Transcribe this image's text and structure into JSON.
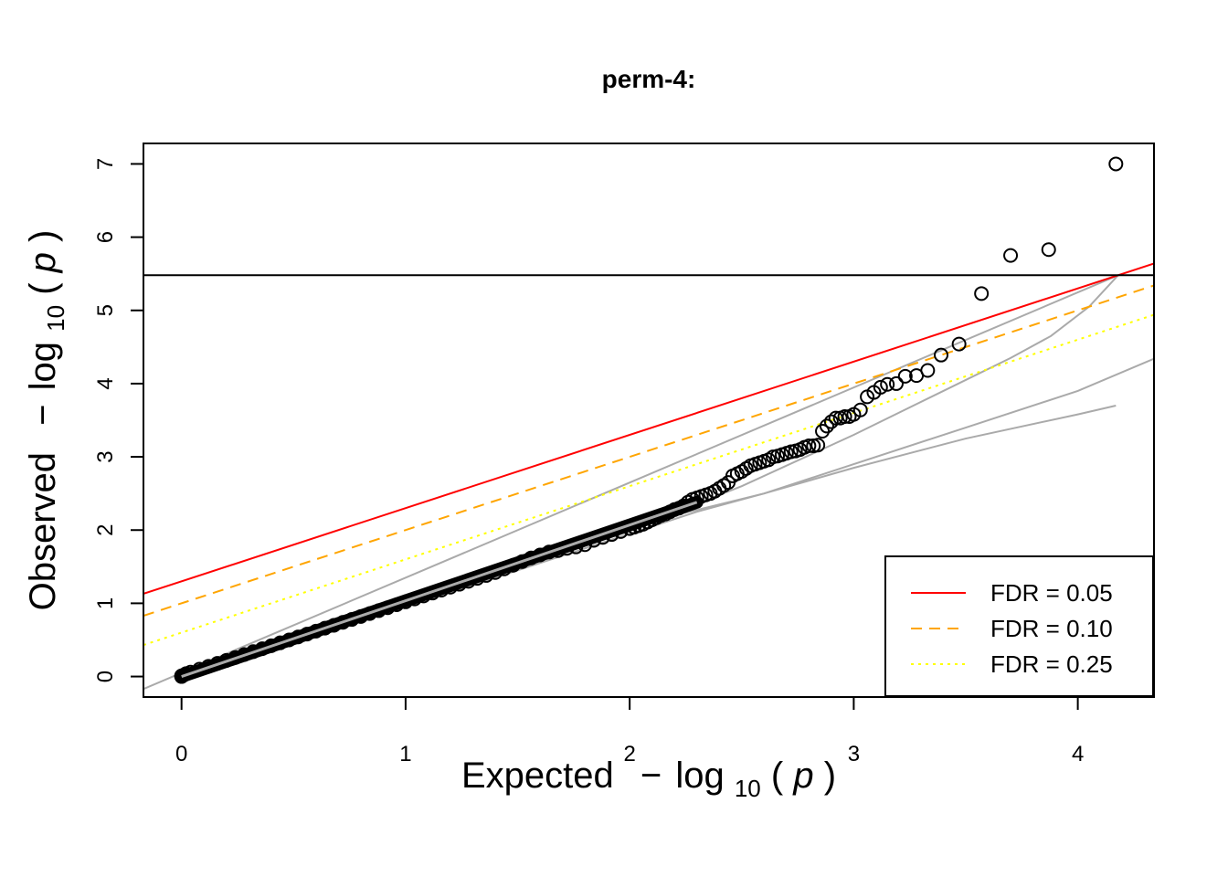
{
  "chart_data": {
    "type": "scatter",
    "title": "perm-4:",
    "xlabel": {
      "prefix": "Expected",
      "minus": "−",
      "log": "log",
      "sub": "10",
      "open": "(",
      "var": "p",
      "close": ")"
    },
    "ylabel": {
      "prefix": "Observed",
      "minus": "−",
      "log": "log",
      "sub": "10",
      "open": "(",
      "var": "p",
      "close": ")"
    },
    "xlim": [
      -0.17,
      4.34
    ],
    "ylim": [
      -0.28,
      7.28
    ],
    "x_ticks": [
      0,
      1,
      2,
      3,
      4
    ],
    "x_tick_labels": [
      "0",
      "1",
      "2",
      "3",
      "4"
    ],
    "y_ticks": [
      0,
      1,
      2,
      3,
      4,
      5,
      6,
      7
    ],
    "y_tick_labels": [
      "0",
      "1",
      "2",
      "3",
      "4",
      "5",
      "6",
      "7"
    ],
    "grid": false,
    "legend_position": "bottom-right",
    "legend": [
      {
        "label": "FDR = 0.05",
        "color": "#ff0000",
        "style": "solid"
      },
      {
        "label": "FDR = 0.10",
        "color": "#ffa500",
        "style": "dashed"
      },
      {
        "label": "FDR = 0.25",
        "color": "#ffff00",
        "style": "dotted"
      }
    ],
    "significance_threshold": {
      "y": 5.48,
      "color": "#000000"
    },
    "fdr_lines": [
      {
        "name": "FDR = 0.05",
        "intercept": 1.3,
        "slope": 1.0,
        "color": "#ff0000",
        "style": "solid"
      },
      {
        "name": "FDR = 0.10",
        "intercept": 1.0,
        "slope": 1.0,
        "color": "#ffa500",
        "style": "dashed"
      },
      {
        "name": "FDR = 0.25",
        "intercept": 0.6,
        "slope": 1.0,
        "color": "#ffff00",
        "style": "dotted"
      }
    ],
    "reference_lines": [
      {
        "name": "identity",
        "color": "#aaaaaa",
        "points": [
          [
            -0.17,
            -0.17
          ],
          [
            4.18,
            5.48
          ]
        ]
      },
      {
        "name": "ci-upper",
        "color": "#aaaaaa",
        "points": [
          [
            0,
            0
          ],
          [
            1,
            1.0
          ],
          [
            2,
            2.0
          ],
          [
            2.5,
            2.6
          ],
          [
            3.0,
            3.3
          ],
          [
            3.4,
            3.9
          ],
          [
            3.7,
            4.35
          ],
          [
            3.88,
            4.65
          ],
          [
            4.05,
            5.05
          ],
          [
            4.18,
            5.48
          ]
        ]
      },
      {
        "name": "ci-lower",
        "color": "#aaaaaa",
        "points": [
          [
            0,
            0
          ],
          [
            1,
            0.95
          ],
          [
            2,
            1.95
          ],
          [
            2.3,
            2.25
          ],
          [
            2.6,
            2.5
          ],
          [
            3.0,
            2.9
          ],
          [
            3.5,
            3.4
          ],
          [
            4.0,
            3.9
          ],
          [
            4.34,
            4.34
          ]
        ]
      },
      {
        "name": "ci-lower-2",
        "color": "#aaaaaa",
        "points": [
          [
            2.2,
            2.2
          ],
          [
            2.6,
            2.5
          ],
          [
            3.0,
            2.85
          ],
          [
            3.5,
            3.25
          ],
          [
            4.0,
            3.58
          ],
          [
            4.17,
            3.7
          ]
        ]
      }
    ],
    "points": [
      [
        4.17,
        7.0
      ],
      [
        3.87,
        5.83
      ],
      [
        3.7,
        5.75
      ],
      [
        3.57,
        5.23
      ],
      [
        3.47,
        4.54
      ],
      [
        3.39,
        4.39
      ],
      [
        3.33,
        4.18
      ],
      [
        3.28,
        4.11
      ],
      [
        3.23,
        4.1
      ],
      [
        3.19,
        4.0
      ],
      [
        3.15,
        3.99
      ],
      [
        3.12,
        3.95
      ],
      [
        3.09,
        3.88
      ],
      [
        3.06,
        3.82
      ],
      [
        3.03,
        3.64
      ],
      [
        3.0,
        3.58
      ],
      [
        2.98,
        3.55
      ],
      [
        2.96,
        3.55
      ],
      [
        2.94,
        3.53
      ],
      [
        2.92,
        3.53
      ],
      [
        2.9,
        3.48
      ],
      [
        2.88,
        3.42
      ],
      [
        2.86,
        3.35
      ],
      [
        2.84,
        3.16
      ],
      [
        2.82,
        3.15
      ],
      [
        2.8,
        3.15
      ],
      [
        2.78,
        3.13
      ],
      [
        2.76,
        3.1
      ],
      [
        2.74,
        3.08
      ],
      [
        2.72,
        3.07
      ],
      [
        2.7,
        3.05
      ],
      [
        2.68,
        3.03
      ],
      [
        2.66,
        3.01
      ],
      [
        2.64,
        3.0
      ],
      [
        2.62,
        2.96
      ],
      [
        2.6,
        2.94
      ],
      [
        2.58,
        2.92
      ],
      [
        2.56,
        2.9
      ],
      [
        2.54,
        2.88
      ],
      [
        2.52,
        2.84
      ],
      [
        2.5,
        2.8
      ],
      [
        2.48,
        2.77
      ],
      [
        2.46,
        2.74
      ],
      [
        2.44,
        2.65
      ],
      [
        2.42,
        2.61
      ],
      [
        2.4,
        2.57
      ],
      [
        2.38,
        2.53
      ],
      [
        2.36,
        2.5
      ],
      [
        2.34,
        2.48
      ],
      [
        2.32,
        2.46
      ],
      [
        2.3,
        2.44
      ],
      [
        2.28,
        2.42
      ],
      [
        2.26,
        2.38
      ],
      [
        2.24,
        2.33
      ],
      [
        2.22,
        2.3
      ],
      [
        2.2,
        2.28
      ],
      [
        2.18,
        2.25
      ],
      [
        2.16,
        2.22
      ],
      [
        2.14,
        2.2
      ],
      [
        2.12,
        2.17
      ],
      [
        2.1,
        2.14
      ],
      [
        2.08,
        2.11
      ],
      [
        2.06,
        2.08
      ],
      [
        2.04,
        2.06
      ],
      [
        2.02,
        2.04
      ],
      [
        2.0,
        2.02
      ],
      [
        1.96,
        1.98
      ],
      [
        1.92,
        1.94
      ],
      [
        1.88,
        1.9
      ],
      [
        1.84,
        1.86
      ],
      [
        1.8,
        1.8
      ],
      [
        1.76,
        1.77
      ],
      [
        1.72,
        1.75
      ],
      [
        1.68,
        1.72
      ],
      [
        1.64,
        1.7
      ],
      [
        1.6,
        1.66
      ],
      [
        1.56,
        1.62
      ],
      [
        1.52,
        1.57
      ],
      [
        1.48,
        1.52
      ],
      [
        1.44,
        1.47
      ],
      [
        1.4,
        1.42
      ],
      [
        1.36,
        1.38
      ],
      [
        1.32,
        1.34
      ],
      [
        1.28,
        1.3
      ],
      [
        1.24,
        1.26
      ],
      [
        1.2,
        1.22
      ],
      [
        1.16,
        1.18
      ],
      [
        1.12,
        1.14
      ],
      [
        1.08,
        1.1
      ],
      [
        1.04,
        1.06
      ],
      [
        1.0,
        1.02
      ],
      [
        0.96,
        0.98
      ],
      [
        0.92,
        0.94
      ],
      [
        0.88,
        0.9
      ],
      [
        0.84,
        0.86
      ],
      [
        0.8,
        0.82
      ],
      [
        0.76,
        0.78
      ],
      [
        0.72,
        0.74
      ],
      [
        0.68,
        0.7
      ],
      [
        0.64,
        0.66
      ],
      [
        0.6,
        0.62
      ],
      [
        0.56,
        0.58
      ],
      [
        0.52,
        0.54
      ],
      [
        0.48,
        0.5
      ],
      [
        0.44,
        0.46
      ],
      [
        0.4,
        0.42
      ],
      [
        0.36,
        0.38
      ],
      [
        0.32,
        0.34
      ],
      [
        0.28,
        0.3
      ],
      [
        0.24,
        0.26
      ],
      [
        0.2,
        0.22
      ],
      [
        0.16,
        0.18
      ],
      [
        0.12,
        0.14
      ],
      [
        0.08,
        0.1
      ],
      [
        0.04,
        0.06
      ],
      [
        0.02,
        0.04
      ],
      [
        0.01,
        0.02
      ],
      [
        0.0,
        0.01
      ],
      [
        0.0,
        0.0
      ]
    ]
  }
}
